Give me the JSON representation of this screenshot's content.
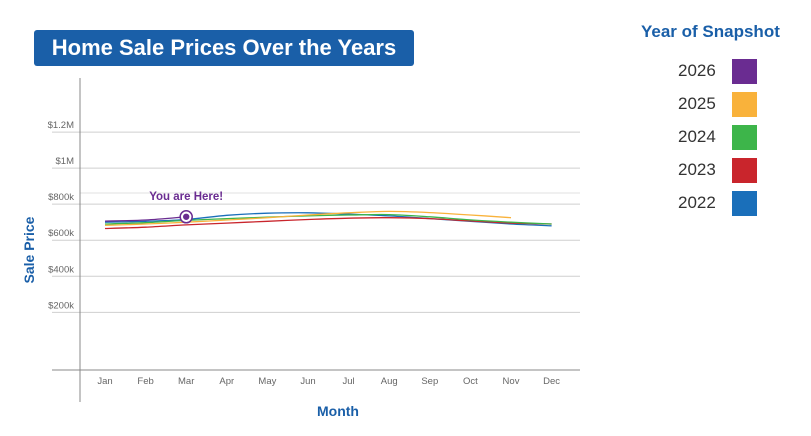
{
  "chart_data": {
    "type": "line",
    "title": "Home Sale Prices Over the Years",
    "xlabel": "Month",
    "ylabel": "Sale Price",
    "categories": [
      "Jan",
      "Feb",
      "Mar",
      "Apr",
      "May",
      "Jun",
      "Jul",
      "Aug",
      "Sep",
      "Oct",
      "Nov",
      "Dec"
    ],
    "y_ticks": [
      {
        "value": 200000,
        "label": "$200k"
      },
      {
        "value": 400000,
        "label": "$400k"
      },
      {
        "value": 600000,
        "label": "$600k"
      },
      {
        "value": 800000,
        "label": "$800k"
      },
      {
        "value": 1000000,
        "label": "$1M"
      },
      {
        "value": 1200000,
        "label": "$1.2M"
      }
    ],
    "ylim": [
      -120000,
      1500000
    ],
    "legend": {
      "title": "Year of Snapshot",
      "position": "right"
    },
    "series": [
      {
        "name": "2022",
        "color": "#1a6fba",
        "values": [
          700000,
          705000,
          715000,
          738000,
          750000,
          752000,
          745000,
          735000,
          720000,
          705000,
          690000,
          680000
        ]
      },
      {
        "name": "2023",
        "color": "#c9252c",
        "values": [
          665000,
          672000,
          685000,
          695000,
          705000,
          715000,
          722000,
          725000,
          720000,
          707000,
          695000,
          690000
        ]
      },
      {
        "name": "2024",
        "color": "#3db54a",
        "values": [
          690000,
          697000,
          710000,
          720000,
          728000,
          735000,
          740000,
          742000,
          730000,
          713000,
          700000,
          690000
        ]
      },
      {
        "name": "2025",
        "color": "#f9b23b",
        "values": [
          682000,
          690000,
          700000,
          712000,
          725000,
          740000,
          752000,
          760000,
          753000,
          740000,
          725000,
          null
        ]
      },
      {
        "name": "2026",
        "color": "#6a2c91",
        "values": [
          706000,
          712000,
          730000,
          null,
          null,
          null,
          null,
          null,
          null,
          null,
          null,
          null
        ]
      }
    ],
    "annotation": {
      "text": "You are Here!",
      "series": "2026",
      "x": "Mar",
      "y": 730000,
      "color": "#6a2c91"
    }
  }
}
